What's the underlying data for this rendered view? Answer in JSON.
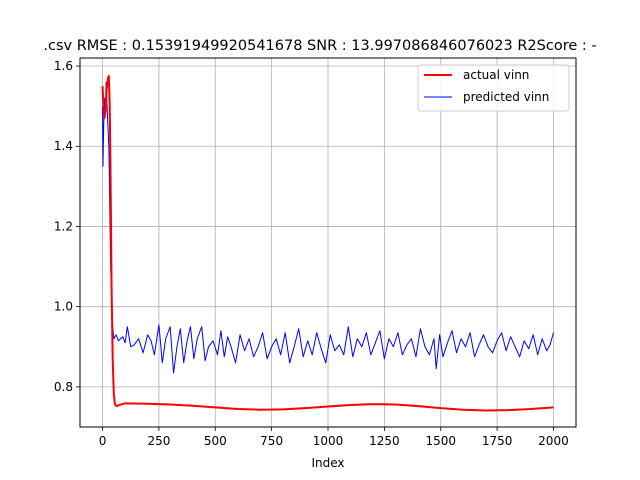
{
  "chart_data": {
    "type": "line",
    "title": ".csv RMSE : 0.15391949920541678  SNR : 13.997086846076023 R2Score : -",
    "xlabel": "Index",
    "ylabel": "",
    "xlim": [
      -100,
      2100
    ],
    "ylim": [
      0.7,
      1.62
    ],
    "x_ticks": [
      0,
      250,
      500,
      750,
      1000,
      1250,
      1500,
      1750,
      2000
    ],
    "x_tick_labels": [
      "0",
      "250",
      "500",
      "750",
      "1000",
      "1250",
      "1500",
      "1750",
      "2000"
    ],
    "y_ticks": [
      0.8,
      1.0,
      1.2,
      1.4,
      1.6
    ],
    "y_tick_labels": [
      "0.8",
      "1.0",
      "1.2",
      "1.4",
      "1.6"
    ],
    "grid": true,
    "legend": "top-right",
    "series": [
      {
        "name": "actual vinn",
        "color": "#ff0000",
        "linewidth": 2,
        "points": [
          [
            0,
            1.55
          ],
          [
            3,
            1.51
          ],
          [
            8,
            1.47
          ],
          [
            14,
            1.49
          ],
          [
            18,
            1.54
          ],
          [
            24,
            1.57
          ],
          [
            28,
            1.575
          ],
          [
            32,
            1.5
          ],
          [
            36,
            1.3
          ],
          [
            40,
            1.05
          ],
          [
            45,
            0.87
          ],
          [
            50,
            0.78
          ],
          [
            55,
            0.757
          ],
          [
            62,
            0.752
          ],
          [
            75,
            0.755
          ],
          [
            100,
            0.759
          ],
          [
            200,
            0.758
          ],
          [
            300,
            0.756
          ],
          [
            400,
            0.753
          ],
          [
            500,
            0.749
          ],
          [
            600,
            0.745
          ],
          [
            700,
            0.743
          ],
          [
            800,
            0.744
          ],
          [
            900,
            0.747
          ],
          [
            1000,
            0.751
          ],
          [
            1100,
            0.755
          ],
          [
            1200,
            0.757
          ],
          [
            1300,
            0.756
          ],
          [
            1400,
            0.752
          ],
          [
            1500,
            0.747
          ],
          [
            1600,
            0.743
          ],
          [
            1700,
            0.741
          ],
          [
            1800,
            0.742
          ],
          [
            1900,
            0.745
          ],
          [
            2000,
            0.749
          ]
        ]
      },
      {
        "name": "predicted vinn",
        "color": "#0000ff",
        "linewidth": 1,
        "points": [
          [
            0,
            1.5
          ],
          [
            2,
            1.35
          ],
          [
            5,
            1.45
          ],
          [
            8,
            1.52
          ],
          [
            12,
            1.48
          ],
          [
            16,
            1.56
          ],
          [
            20,
            1.5
          ],
          [
            24,
            1.45
          ],
          [
            28,
            1.4
          ],
          [
            32,
            1.25
          ],
          [
            36,
            1.1
          ],
          [
            40,
            1.02
          ],
          [
            45,
            0.95
          ],
          [
            50,
            0.92
          ],
          [
            60,
            0.93
          ],
          [
            70,
            0.915
          ],
          [
            80,
            0.92
          ],
          [
            90,
            0.925
          ],
          [
            100,
            0.91
          ],
          [
            110,
            0.95
          ],
          [
            125,
            0.9
          ],
          [
            140,
            0.905
          ],
          [
            160,
            0.92
          ],
          [
            180,
            0.885
          ],
          [
            200,
            0.93
          ],
          [
            215,
            0.915
          ],
          [
            230,
            0.88
          ],
          [
            250,
            0.955
          ],
          [
            265,
            0.86
          ],
          [
            280,
            0.92
          ],
          [
            300,
            0.95
          ],
          [
            315,
            0.835
          ],
          [
            330,
            0.9
          ],
          [
            345,
            0.945
          ],
          [
            360,
            0.86
          ],
          [
            375,
            0.915
          ],
          [
            390,
            0.95
          ],
          [
            405,
            0.87
          ],
          [
            420,
            0.92
          ],
          [
            440,
            0.95
          ],
          [
            455,
            0.865
          ],
          [
            470,
            0.9
          ],
          [
            490,
            0.915
          ],
          [
            510,
            0.88
          ],
          [
            525,
            0.94
          ],
          [
            540,
            0.875
          ],
          [
            555,
            0.925
          ],
          [
            570,
            0.9
          ],
          [
            590,
            0.86
          ],
          [
            610,
            0.93
          ],
          [
            630,
            0.89
          ],
          [
            650,
            0.92
          ],
          [
            670,
            0.875
          ],
          [
            690,
            0.9
          ],
          [
            710,
            0.935
          ],
          [
            730,
            0.87
          ],
          [
            750,
            0.9
          ],
          [
            770,
            0.92
          ],
          [
            790,
            0.88
          ],
          [
            810,
            0.935
          ],
          [
            830,
            0.86
          ],
          [
            850,
            0.9
          ],
          [
            870,
            0.945
          ],
          [
            890,
            0.875
          ],
          [
            910,
            0.915
          ],
          [
            930,
            0.88
          ],
          [
            950,
            0.935
          ],
          [
            970,
            0.895
          ],
          [
            990,
            0.86
          ],
          [
            1010,
            0.93
          ],
          [
            1030,
            0.89
          ],
          [
            1050,
            0.905
          ],
          [
            1070,
            0.88
          ],
          [
            1090,
            0.95
          ],
          [
            1110,
            0.875
          ],
          [
            1130,
            0.92
          ],
          [
            1150,
            0.9
          ],
          [
            1170,
            0.935
          ],
          [
            1190,
            0.88
          ],
          [
            1210,
            0.91
          ],
          [
            1230,
            0.94
          ],
          [
            1250,
            0.87
          ],
          [
            1270,
            0.92
          ],
          [
            1290,
            0.9
          ],
          [
            1310,
            0.935
          ],
          [
            1330,
            0.88
          ],
          [
            1350,
            0.905
          ],
          [
            1370,
            0.92
          ],
          [
            1390,
            0.875
          ],
          [
            1410,
            0.945
          ],
          [
            1430,
            0.9
          ],
          [
            1450,
            0.88
          ],
          [
            1470,
            0.92
          ],
          [
            1480,
            0.845
          ],
          [
            1495,
            0.93
          ],
          [
            1510,
            0.875
          ],
          [
            1530,
            0.91
          ],
          [
            1550,
            0.94
          ],
          [
            1570,
            0.885
          ],
          [
            1590,
            0.92
          ],
          [
            1610,
            0.9
          ],
          [
            1630,
            0.935
          ],
          [
            1650,
            0.875
          ],
          [
            1670,
            0.905
          ],
          [
            1690,
            0.93
          ],
          [
            1710,
            0.9
          ],
          [
            1730,
            0.885
          ],
          [
            1750,
            0.915
          ],
          [
            1770,
            0.935
          ],
          [
            1790,
            0.89
          ],
          [
            1810,
            0.925
          ],
          [
            1830,
            0.9
          ],
          [
            1850,
            0.875
          ],
          [
            1870,
            0.915
          ],
          [
            1890,
            0.895
          ],
          [
            1910,
            0.93
          ],
          [
            1930,
            0.88
          ],
          [
            1950,
            0.92
          ],
          [
            1970,
            0.89
          ],
          [
            1985,
            0.905
          ],
          [
            2000,
            0.935
          ]
        ]
      }
    ]
  }
}
